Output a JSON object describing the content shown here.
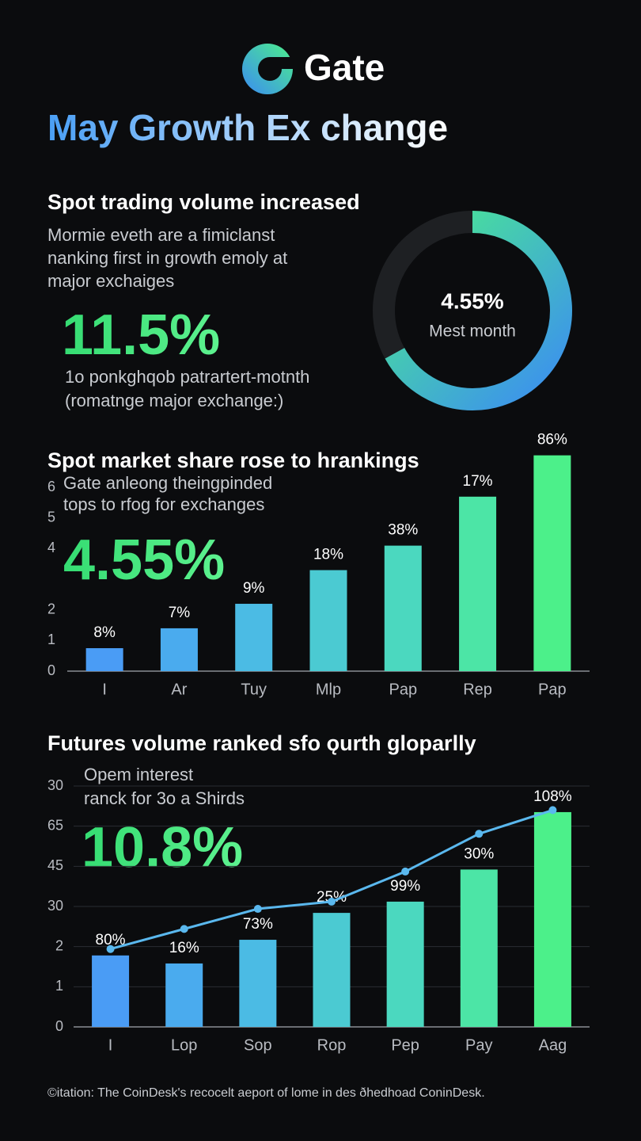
{
  "header": {
    "logo": "Gate",
    "title": "May Growth Ex change"
  },
  "chart_data": [
    {
      "type": "donut",
      "title": "Spot trading volume increased",
      "description": [
        "Mormie eveth are a fimiclanst",
        "nanking first in growth emoly at",
        "major exchaiges"
      ],
      "highlight": "11.5%",
      "note": [
        "1o ponkghqob patrartert-motnth",
        "(romatnge major exchange:)"
      ],
      "values": [
        67,
        33
      ],
      "colors": [
        "#4cf08a",
        "#1e2023"
      ],
      "center_label": "4.55%",
      "center_sublabel": "Mest month"
    },
    {
      "type": "bar",
      "title": "Spot market share rose to hrankings",
      "description": [
        "Gate anleong theingpinded",
        "tops to rfog for exchanges"
      ],
      "highlight": "4.55%",
      "categories": [
        "I",
        "Ar",
        "Tuy",
        "Mlp",
        "Pap",
        "Rep",
        "Pap"
      ],
      "values": [
        0.75,
        1.4,
        2.2,
        3.3,
        4.1,
        5.7,
        7.05
      ],
      "bar_labels": [
        "8%",
        "7%",
        "9%",
        "18%",
        "38%",
        "17%",
        "86%"
      ],
      "colors": [
        "#4a9cf5",
        "#4aabee",
        "#4bbbe4",
        "#4bcad2",
        "#4bd8bf",
        "#4ce5a6",
        "#4cf08a"
      ],
      "ylim": [
        0,
        7.3
      ],
      "yticks": [
        0,
        1,
        2,
        4,
        5,
        6
      ],
      "grid": false
    },
    {
      "type": "bar_line",
      "title": "Futures volume ranked sfo ǫurth gloparlly",
      "description": [
        "Opem interest",
        "ranck for 3o a Shirds"
      ],
      "highlight": "10.8%",
      "categories": [
        "I",
        "Lop",
        "Sop",
        "Rop",
        "Pep",
        "Pay",
        "Aag"
      ],
      "values": [
        1.78,
        1.58,
        2.17,
        2.84,
        3.12,
        3.92,
        5.35
      ],
      "bar_labels": [
        "80%",
        "16%",
        "73%",
        "25%",
        "99%",
        "30%",
        "108%"
      ],
      "colors": [
        "#4a9cf5",
        "#4aabee",
        "#4bbbe4",
        "#4bcad2",
        "#4bd8bf",
        "#4ce5a6",
        "#4cf08a"
      ],
      "line_values": [
        1.94,
        2.44,
        2.94,
        3.12,
        3.87,
        4.81,
        5.4
      ],
      "line_color": "#5ab8ee",
      "ylim": [
        0,
        6
      ],
      "yticks": [
        0,
        1,
        2,
        {
          "value": 3,
          "label": "30"
        },
        {
          "value": 4,
          "label": "45"
        },
        {
          "value": 5,
          "label": "65"
        },
        {
          "value": 6,
          "label": "30"
        }
      ],
      "grid": true
    }
  ],
  "footer": "©itation: The CoinDesk's recocelt aeport of lome in des ðhedhoad ConinDesk."
}
